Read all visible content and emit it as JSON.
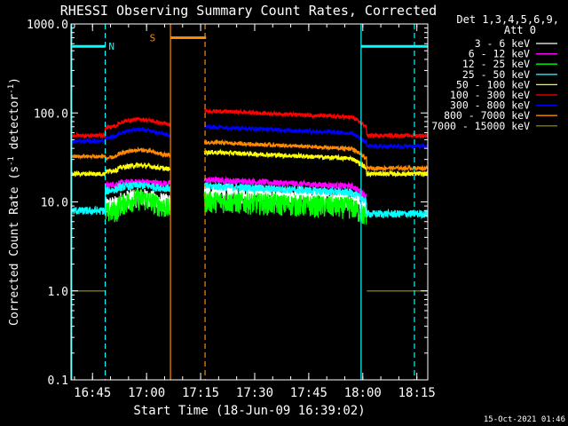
{
  "chart_data": {
    "type": "line",
    "title": "RHESSI Observing Summary Count Rates, Corrected",
    "xlabel": "Start Time (18-Jun-09 16:39:02)",
    "ylabel": "Corrected Count Rate (s",
    "ylabel_sup": "-1",
    "ylabel_rest": " detector",
    "ylabel_sup2": "-1",
    "ylabel_end": ")",
    "yscale": "log",
    "xlim_minutes": [
      0,
      99
    ],
    "ylim": [
      0.1,
      1000
    ],
    "x_ticks": [
      {
        "label": "16:45",
        "t": 5.97
      },
      {
        "label": "17:00",
        "t": 20.97
      },
      {
        "label": "17:15",
        "t": 35.97
      },
      {
        "label": "17:30",
        "t": 50.97
      },
      {
        "label": "17:45",
        "t": 65.97
      },
      {
        "label": "18:00",
        "t": 80.97
      },
      {
        "label": "18:15",
        "t": 95.97
      }
    ],
    "y_ticks": [
      {
        "label": "0.1",
        "v": 0.1
      },
      {
        "label": "1.0",
        "v": 1.0
      },
      {
        "label": "10.0",
        "v": 10
      },
      {
        "label": "100.0",
        "v": 100
      },
      {
        "label": "1000.0",
        "v": 1000
      }
    ],
    "legend_header": [
      "Det 1,3,4,5,6,9,",
      "Att 0"
    ],
    "series": [
      {
        "name": "3 - 6 keV",
        "color": "#ffffff",
        "level": 10
      },
      {
        "name": "6 - 12 keV",
        "color": "#ff00ff",
        "level": 16
      },
      {
        "name": "12 - 25 keV",
        "color": "#00ff00",
        "level": 9
      },
      {
        "name": "25 - 50 keV",
        "color": "#00ffff",
        "level": 15
      },
      {
        "name": "50 - 100 keV",
        "color": "#ffff00",
        "level": 23
      },
      {
        "name": "100 - 300 keV",
        "color": "#ff0000",
        "level": 60
      },
      {
        "name": "300 - 800 keV",
        "color": "#0000ff",
        "level": 48
      },
      {
        "name": "800 - 7000 keV",
        "color": "#ff8800",
        "level": 30
      },
      {
        "name": "7000 - 15000 keV",
        "color": "#808000",
        "level": 1
      }
    ],
    "flags": [
      {
        "label": "N",
        "color": "#00ffff"
      },
      {
        "label": "S",
        "color": "#ff8800"
      }
    ],
    "night_periods_minutes": [
      [
        0,
        9.5
      ],
      [
        80.5,
        99
      ]
    ],
    "saa_period_minutes": [
      [
        27.5,
        37.5
      ]
    ],
    "data_gap_minutes": [
      27.5,
      37.0
    ]
  },
  "timestamp": "15-Oct-2021 01:46"
}
